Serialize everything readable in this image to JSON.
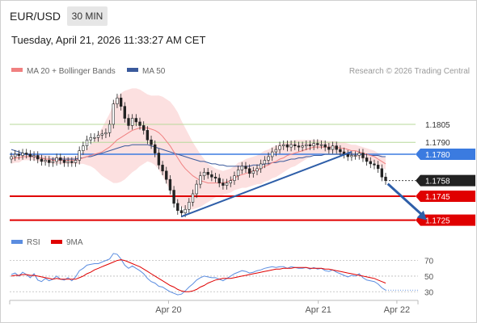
{
  "header": {
    "symbol": "EUR/USD",
    "timeframe": "30 MIN",
    "timestamp": "Tuesday, April 21, 2026 11:33:27 AM CET"
  },
  "colors": {
    "ma20": "#f08080",
    "bollinger_fill": "#fbd5d5",
    "ma50": "#3a5a9c",
    "support_resistance": "#e00000",
    "target_line": "#b7d99a",
    "trend_arrow": "#2e5ea8",
    "candle": "#222222",
    "rsi": "#5b8de0",
    "rsi_ma": "#e00000",
    "pivot_label": "#3b7be0",
    "current_label": "#222222",
    "support_label": "#e00000"
  },
  "chart_data": [
    {
      "type": "candlestick",
      "title": "",
      "legend": [
        {
          "name": "MA 20 + Bollinger Bands",
          "color": "#f08080"
        },
        {
          "name": "MA 50",
          "color": "#3a5a9c"
        }
      ],
      "legend_position": "top-left",
      "credit": "Research © 2026 Trading Central",
      "x_ticks": [
        "Apr 20",
        "Apr 21",
        "Apr 22"
      ],
      "ylim": [
        1.1718,
        1.1838
      ],
      "levels": [
        {
          "value": 1.1805,
          "label": "1.1805",
          "kind": "target"
        },
        {
          "value": 1.179,
          "label": "1.1790",
          "kind": "target"
        },
        {
          "value": 1.178,
          "label": "1.1780",
          "kind": "pivot"
        },
        {
          "value": 1.1758,
          "label": "1.1758",
          "kind": "current"
        },
        {
          "value": 1.1745,
          "label": "1.1745",
          "kind": "support"
        },
        {
          "value": 1.1725,
          "label": "1.1725",
          "kind": "support"
        }
      ],
      "close_approx": [
        1.1778,
        1.178,
        1.1779,
        1.1781,
        1.178,
        1.1778,
        1.1779,
        1.1776,
        1.1774,
        1.1775,
        1.1773,
        1.1774,
        1.1777,
        1.1775,
        1.1773,
        1.1774,
        1.1773,
        1.1775,
        1.1783,
        1.1787,
        1.1792,
        1.1794,
        1.1794,
        1.1796,
        1.1797,
        1.1798,
        1.1805,
        1.1822,
        1.1827,
        1.182,
        1.181,
        1.1804,
        1.181,
        1.1807,
        1.1804,
        1.18,
        1.1792,
        1.1788,
        1.1781,
        1.1771,
        1.1766,
        1.1759,
        1.175,
        1.1739,
        1.1733,
        1.1731,
        1.1734,
        1.174,
        1.1747,
        1.1755,
        1.1762,
        1.1765,
        1.1763,
        1.1761,
        1.176,
        1.1756,
        1.1754,
        1.1756,
        1.1758,
        1.1762,
        1.1767,
        1.177,
        1.1768,
        1.1764,
        1.1766,
        1.1768,
        1.1772,
        1.1775,
        1.1778,
        1.1782,
        1.1784,
        1.1787,
        1.1788,
        1.1786,
        1.1788,
        1.1787,
        1.1786,
        1.1787,
        1.1788,
        1.1787,
        1.1789,
        1.1788,
        1.1788,
        1.1786,
        1.1784,
        1.1787,
        1.1784,
        1.1782,
        1.178,
        1.1778,
        1.1779,
        1.1779,
        1.1781,
        1.1777,
        1.1774,
        1.1772,
        1.1771,
        1.1768,
        1.1761,
        1.1758
      ],
      "ma20_approx": [
        1.1776,
        1.1777,
        1.1777,
        1.1778,
        1.1778,
        1.1778,
        1.1778,
        1.1777,
        1.1777,
        1.1776,
        1.1776,
        1.1775,
        1.1775,
        1.1775,
        1.1775,
        1.1775,
        1.1775,
        1.1775,
        1.1776,
        1.1777,
        1.1778,
        1.1779,
        1.178,
        1.1781,
        1.1782,
        1.1784,
        1.1786,
        1.1789,
        1.1792,
        1.1794,
        1.1796,
        1.1798,
        1.18,
        1.1801,
        1.1802,
        1.1802,
        1.1802,
        1.1801,
        1.18,
        1.1798,
        1.1795,
        1.1791,
        1.1787,
        1.1782,
        1.1777,
        1.1772,
        1.1768,
        1.1765,
        1.1762,
        1.176,
        1.1758,
        1.1757,
        1.1756,
        1.1756,
        1.1756,
        1.1756,
        1.1756,
        1.1757,
        1.1758,
        1.176,
        1.1762,
        1.1763,
        1.1764,
        1.1765,
        1.1766,
        1.1767,
        1.1768,
        1.177,
        1.1771,
        1.1773,
        1.1774,
        1.1776,
        1.1777,
        1.1779,
        1.178,
        1.1781,
        1.1782,
        1.1783,
        1.1784,
        1.1785,
        1.1786,
        1.1786,
        1.1786,
        1.1786,
        1.1786,
        1.1786,
        1.1786,
        1.1785,
        1.1785,
        1.1784,
        1.1783,
        1.1783,
        1.1782,
        1.1781,
        1.178,
        1.1779,
        1.1778,
        1.1776,
        1.1774,
        1.1772
      ],
      "ma50_approx": [
        1.1784,
        1.1783,
        1.1782,
        1.1781,
        1.178,
        1.1779,
        1.1778,
        1.1777,
        1.1777,
        1.1776,
        1.1776,
        1.1776,
        1.1776,
        1.1776,
        1.1776,
        1.1776,
        1.1776,
        1.1776,
        1.1777,
        1.1777,
        1.1778,
        1.1778,
        1.1779,
        1.178,
        1.1781,
        1.1782,
        1.1783,
        1.1784,
        1.1785,
        1.1786,
        1.1787,
        1.1787,
        1.1788,
        1.1788,
        1.1788,
        1.1788,
        1.1788,
        1.1787,
        1.1786,
        1.1785,
        1.1784,
        1.1783,
        1.1782,
        1.1781,
        1.178,
        1.1779,
        1.1778,
        1.1777,
        1.1776,
        1.1775,
        1.1774,
        1.1774,
        1.1773,
        1.1772,
        1.1772,
        1.1771,
        1.1771,
        1.177,
        1.177,
        1.177,
        1.177,
        1.177,
        1.177,
        1.177,
        1.1771,
        1.1771,
        1.1771,
        1.1772,
        1.1772,
        1.1773,
        1.1773,
        1.1774,
        1.1774,
        1.1775,
        1.1776,
        1.1776,
        1.1777,
        1.1777,
        1.1778,
        1.1778,
        1.1779,
        1.1779,
        1.1779,
        1.178,
        1.178,
        1.178,
        1.178,
        1.178,
        1.178,
        1.178,
        1.178,
        1.178,
        1.178,
        1.178,
        1.178,
        1.1779,
        1.1779,
        1.1779,
        1.1778,
        1.1778
      ],
      "band_halfwidth_approx": [
        0.0004,
        0.0004,
        0.0004,
        0.0003,
        0.0003,
        0.0003,
        0.0003,
        0.0003,
        0.0003,
        0.0003,
        0.0003,
        0.0003,
        0.0003,
        0.0003,
        0.0003,
        0.0003,
        0.0003,
        0.0003,
        0.0004,
        0.0005,
        0.0007,
        0.0009,
        0.0012,
        0.0016,
        0.002,
        0.0024,
        0.0028,
        0.0033,
        0.0036,
        0.0037,
        0.0037,
        0.0036,
        0.0035,
        0.0034,
        0.0032,
        0.003,
        0.0028,
        0.0028,
        0.0029,
        0.0031,
        0.0033,
        0.0035,
        0.0037,
        0.0038,
        0.0038,
        0.0036,
        0.0034,
        0.0031,
        0.0028,
        0.0025,
        0.0022,
        0.0019,
        0.0016,
        0.0014,
        0.0012,
        0.0011,
        0.001,
        0.001,
        0.001,
        0.001,
        0.0011,
        0.0011,
        0.0012,
        0.0012,
        0.0012,
        0.0012,
        0.0013,
        0.0013,
        0.0013,
        0.0013,
        0.0013,
        0.0013,
        0.0012,
        0.0012,
        0.0011,
        0.0011,
        0.001,
        0.0009,
        0.0008,
        0.0007,
        0.0006,
        0.0006,
        0.0006,
        0.0005,
        0.0005,
        0.0005,
        0.0005,
        0.0005,
        0.0005,
        0.0005,
        0.0005,
        0.0005,
        0.0005,
        0.0005,
        0.0005,
        0.0005,
        0.0005,
        0.0005,
        0.0005,
        0.0005
      ],
      "trendline": {
        "from_index": 45,
        "from_value": 1.1728,
        "to_index": 90,
        "to_value": 1.1782
      },
      "projection_arrow": {
        "from_index": 100,
        "from_value": 1.1758,
        "to_index": 109,
        "to_value": 1.1725
      }
    },
    {
      "type": "line",
      "title": "",
      "legend": [
        {
          "name": "RSI",
          "color": "#5b8de0"
        },
        {
          "name": "9MA",
          "color": "#e00000"
        }
      ],
      "legend_position": "top-left",
      "ylim": [
        22,
        82
      ],
      "y_ticks": [
        "70",
        "50",
        "30"
      ],
      "rsi_approx": [
        52,
        54,
        50,
        55,
        52,
        48,
        53,
        45,
        43,
        47,
        44,
        46,
        50,
        46,
        45,
        48,
        44,
        49,
        57,
        60,
        64,
        65,
        66,
        66,
        68,
        70,
        72,
        79,
        78,
        72,
        64,
        60,
        63,
        60,
        57,
        53,
        47,
        43,
        41,
        37,
        36,
        33,
        30,
        28,
        26,
        27,
        31,
        36,
        40,
        45,
        48,
        50,
        49,
        48,
        48,
        46,
        44,
        47,
        50,
        53,
        55,
        57,
        56,
        54,
        55,
        57,
        58,
        60,
        61,
        62,
        61,
        62,
        62,
        60,
        62,
        61,
        60,
        60,
        61,
        59,
        61,
        59,
        60,
        57,
        56,
        58,
        55,
        53,
        51,
        49,
        51,
        50,
        53,
        48,
        45,
        44,
        43,
        40,
        35,
        32
      ],
      "rsi_ma_approx": [
        50,
        51,
        51,
        52,
        52,
        51,
        51,
        50,
        49,
        48,
        47,
        46,
        47,
        46,
        46,
        46,
        46,
        46,
        48,
        50,
        53,
        55,
        58,
        60,
        62,
        64,
        66,
        68,
        70,
        71,
        70,
        68,
        66,
        64,
        62,
        59,
        56,
        53,
        50,
        47,
        44,
        41,
        38,
        36,
        33,
        31,
        30,
        30,
        31,
        33,
        36,
        38,
        41,
        43,
        45,
        46,
        47,
        47,
        47,
        48,
        49,
        50,
        51,
        52,
        53,
        54,
        55,
        56,
        57,
        58,
        59,
        59,
        60,
        60,
        60,
        61,
        61,
        61,
        61,
        60,
        60,
        60,
        60,
        59,
        59,
        58,
        57,
        56,
        55,
        54,
        53,
        52,
        51,
        50,
        49,
        48,
        47,
        45,
        43,
        41
      ]
    }
  ]
}
